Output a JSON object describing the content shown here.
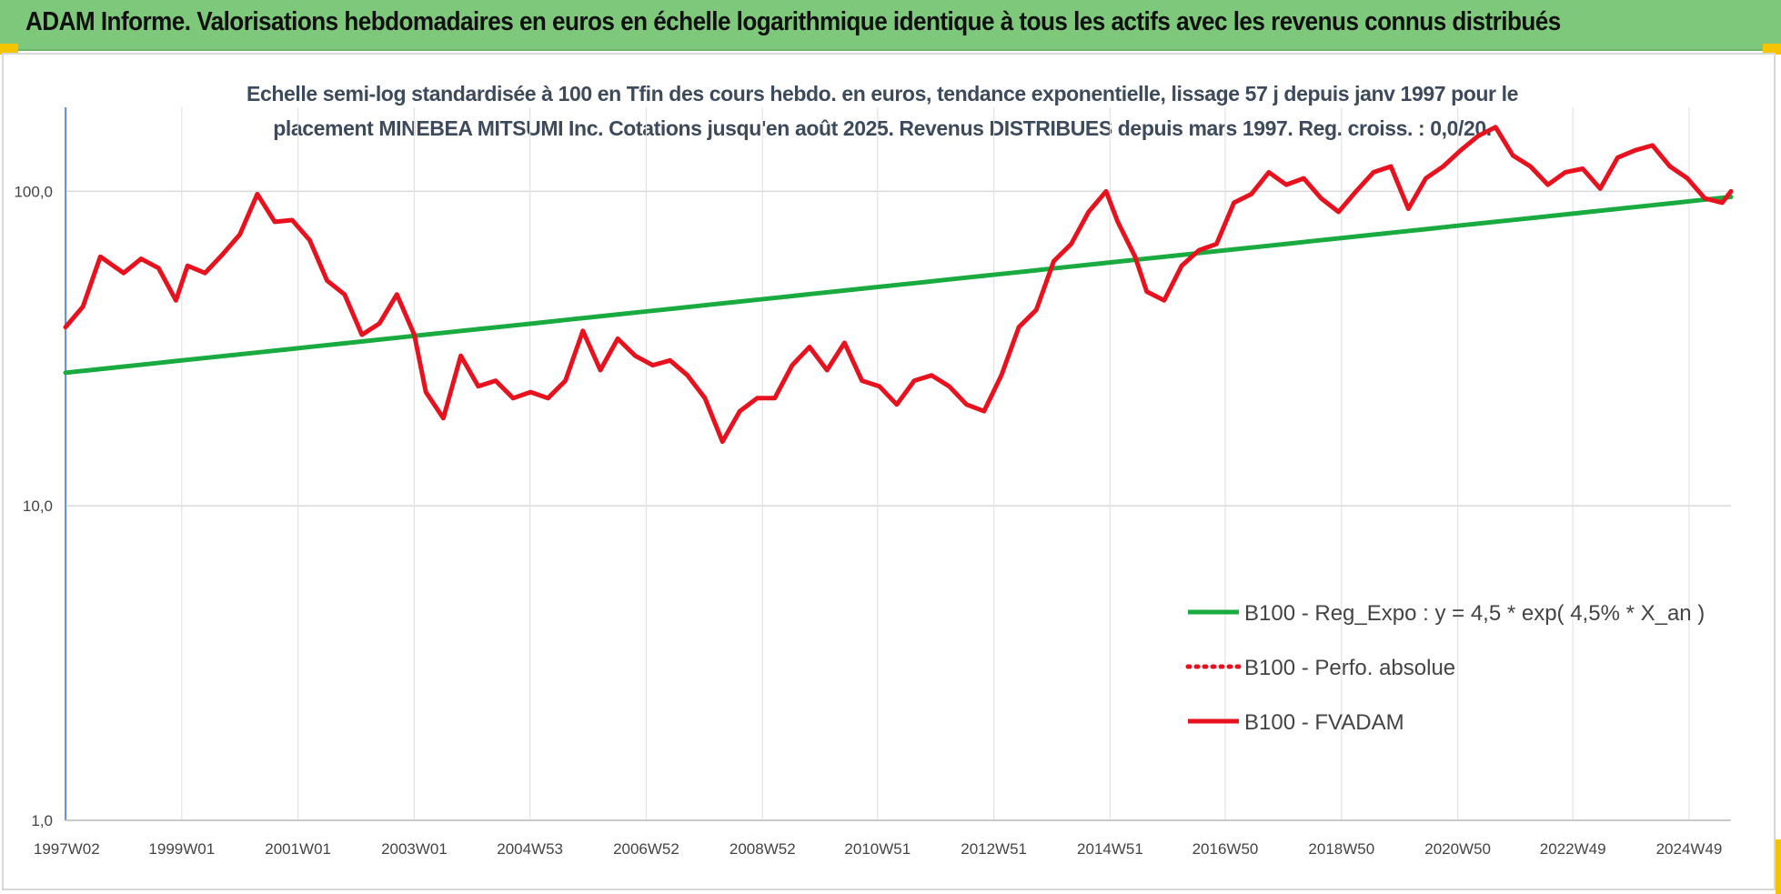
{
  "header": {
    "title": "ADAM Informe. Valorisations hebdomadaires en euros en échelle logarithmique identique à tous les actifs avec les revenus connus distribués"
  },
  "chart_data": {
    "type": "line",
    "title_line1": "Echelle semi-log standardisée à 100 en Tfin des cours hebdo. en euros, tendance exponentielle, lissage 57 j depuis janv 1997 pour le",
    "title_line2": "placement MINEBEA MITSUMI Inc. Cotations jusqu'en août 2025. Revenus DISTRIBUES depuis mars 1997. Reg. croiss. : 0,0/20.",
    "y_scale": "log",
    "ylim": [
      1,
      185
    ],
    "y_ticks": [
      {
        "value": 1,
        "label": "1,0"
      },
      {
        "value": 10,
        "label": "10,0"
      },
      {
        "value": 100,
        "label": "100,0"
      }
    ],
    "xlim": [
      1997.0,
      2025.65
    ],
    "x_ticks": [
      {
        "value": 1997.02,
        "label": "1997W02"
      },
      {
        "value": 1999.0,
        "label": "1999W01"
      },
      {
        "value": 2001.0,
        "label": "2001W01"
      },
      {
        "value": 2003.0,
        "label": "2003W01"
      },
      {
        "value": 2004.99,
        "label": "2004W53"
      },
      {
        "value": 2006.99,
        "label": "2006W52"
      },
      {
        "value": 2008.99,
        "label": "2008W52"
      },
      {
        "value": 2010.97,
        "label": "2010W51"
      },
      {
        "value": 2012.97,
        "label": "2012W51"
      },
      {
        "value": 2014.97,
        "label": "2014W51"
      },
      {
        "value": 2016.95,
        "label": "2016W50"
      },
      {
        "value": 2018.95,
        "label": "2018W50"
      },
      {
        "value": 2020.95,
        "label": "2020W50"
      },
      {
        "value": 2022.93,
        "label": "2022W49"
      },
      {
        "value": 2024.93,
        "label": "2024W49"
      }
    ],
    "grid": true,
    "legend_position": "bottom-right",
    "series": [
      {
        "name": "B100 - Reg_Expo : y = 4,5 * exp( 4,5% *  X_an )",
        "color": "#1aab40",
        "style": "solid",
        "x": [
          1997.0,
          2025.65
        ],
        "y": [
          26.5,
          96.0
        ]
      },
      {
        "name": "B100 - Perfo. absolue",
        "color": "#e8121e",
        "style": "dotted",
        "x": [],
        "y": []
      },
      {
        "name": "B100 - FVADAM",
        "color": "#e8121e",
        "style": "solid",
        "x": [
          1997.0,
          1997.3,
          1997.6,
          1998.0,
          1998.3,
          1998.6,
          1998.9,
          1999.1,
          1999.4,
          1999.7,
          2000.0,
          2000.3,
          2000.6,
          2000.9,
          2001.2,
          2001.5,
          2001.8,
          2002.1,
          2002.4,
          2002.7,
          2003.0,
          2003.2,
          2003.5,
          2003.8,
          2004.1,
          2004.4,
          2004.7,
          2005.0,
          2005.3,
          2005.6,
          2005.9,
          2006.2,
          2006.5,
          2006.8,
          2007.1,
          2007.4,
          2007.7,
          2008.0,
          2008.3,
          2008.6,
          2008.9,
          2009.2,
          2009.5,
          2009.8,
          2010.1,
          2010.4,
          2010.7,
          2011.0,
          2011.3,
          2011.6,
          2011.9,
          2012.2,
          2012.5,
          2012.8,
          2013.1,
          2013.4,
          2013.7,
          2014.0,
          2014.3,
          2014.6,
          2014.9,
          2015.1,
          2015.4,
          2015.6,
          2015.9,
          2016.2,
          2016.5,
          2016.8,
          2017.1,
          2017.4,
          2017.7,
          2018.0,
          2018.3,
          2018.6,
          2018.9,
          2019.2,
          2019.5,
          2019.8,
          2020.1,
          2020.4,
          2020.7,
          2021.0,
          2021.3,
          2021.6,
          2021.9,
          2022.2,
          2022.5,
          2022.8,
          2023.1,
          2023.4,
          2023.7,
          2024.0,
          2024.3,
          2024.6,
          2024.9,
          2025.2,
          2025.5,
          2025.65
        ],
        "y": [
          37,
          43,
          62,
          55,
          61,
          57,
          45,
          58,
          55,
          63,
          73,
          98,
          80,
          81,
          70,
          52,
          47,
          35,
          38,
          47,
          35,
          23,
          19,
          30,
          24,
          25,
          22,
          23,
          22,
          25,
          36,
          27,
          34,
          30,
          28,
          29,
          26,
          22,
          16,
          20,
          22,
          22,
          28,
          32,
          27,
          33,
          25,
          24,
          21,
          25,
          26,
          24,
          21,
          20,
          26,
          37,
          42,
          60,
          68,
          86,
          100,
          80,
          62,
          48,
          45,
          58,
          65,
          68,
          92,
          98,
          115,
          105,
          110,
          95,
          86,
          100,
          115,
          120,
          88,
          110,
          120,
          135,
          150,
          160,
          130,
          120,
          105,
          115,
          118,
          102,
          128,
          135,
          140,
          120,
          110,
          95,
          92,
          100
        ]
      }
    ]
  }
}
